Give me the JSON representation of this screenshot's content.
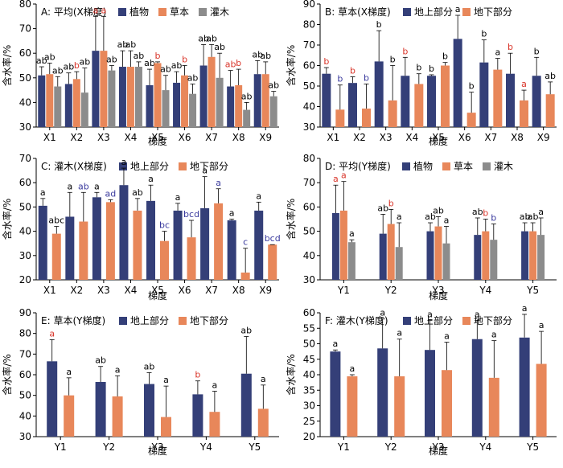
{
  "colors": {
    "plant": "#343f78",
    "herb": "#e8875a",
    "shrub": "#8c8c8c",
    "above": "#343f78",
    "below": "#e8875a",
    "letter_black": "#000000",
    "letter_red": "#d9352a",
    "letter_blue": "#3b3b9e"
  },
  "legend": {
    "plant": "植物",
    "herb": "草本",
    "shrub": "灌木",
    "above": "地上部分",
    "below": "地下部分"
  },
  "ylabel": "含水率/%",
  "xlabel": "梯度",
  "chart_data": [
    {
      "id": "A",
      "type": "bar",
      "title": "A: 平均(X梯度)",
      "xlabel": "梯度",
      "ylabel": "含水率/%",
      "ylim": [
        30,
        80
      ],
      "yticks": [
        30,
        40,
        50,
        60,
        70,
        80
      ],
      "categories": [
        "X1",
        "X2",
        "X3",
        "X4",
        "X5",
        "X6",
        "X7",
        "X8",
        "X9"
      ],
      "legend": [
        "植物",
        "草本",
        "灌木"
      ],
      "series": [
        {
          "name": "植物",
          "color_key": "plant",
          "values": [
            51,
            47.5,
            61,
            54.5,
            47,
            48,
            55,
            46.5,
            51.5
          ],
          "errors": [
            3.5,
            4.5,
            14,
            6.5,
            6.5,
            4.5,
            8.5,
            6.5,
            5.5
          ],
          "labels": [
            "ab",
            "ab",
            "a",
            "ab",
            "ab",
            "ab",
            "ab",
            "ab",
            "ab"
          ],
          "label_colors": [
            "letter_black",
            "letter_black",
            "letter_red",
            "letter_black",
            "letter_black",
            "letter_black",
            "letter_black",
            "letter_red",
            "letter_black"
          ]
        },
        {
          "name": "草本",
          "color_key": "herb",
          "values": [
            51.5,
            49.5,
            61,
            54.5,
            56,
            51,
            58.5,
            47,
            51.5
          ],
          "errors": [
            4.5,
            3,
            14,
            6.5,
            0.5,
            4,
            5,
            6.5,
            5
          ],
          "labels": [
            "ab",
            "b",
            "a",
            "ab",
            "b",
            "b",
            "ab",
            "b",
            "ab"
          ],
          "label_colors": [
            "letter_black",
            "letter_red",
            "letter_red",
            "letter_black",
            "letter_red",
            "letter_red",
            "letter_black",
            "letter_red",
            "letter_black"
          ]
        },
        {
          "name": "灌木",
          "color_key": "shrub",
          "values": [
            46.5,
            44,
            53,
            54.5,
            45,
            43.5,
            50,
            37,
            42.5
          ],
          "errors": [
            4,
            10,
            2,
            2,
            6,
            4,
            10,
            3,
            2
          ],
          "labels": [
            "ab",
            "ab",
            "ab",
            "ab",
            "ab",
            "ab",
            "ab",
            "ab",
            "ab"
          ],
          "label_colors": [
            "letter_black",
            "letter_black",
            "letter_black",
            "letter_black",
            "letter_black",
            "letter_black",
            "letter_black",
            "letter_black",
            "letter_black"
          ]
        }
      ]
    },
    {
      "id": "B",
      "type": "bar",
      "title": "B: 草本(X梯度)",
      "xlabel": "梯度",
      "ylabel": "含水率/%",
      "ylim": [
        30,
        90
      ],
      "yticks": [
        30,
        40,
        50,
        60,
        70,
        80,
        90
      ],
      "categories": [
        "X1",
        "X2",
        "X3",
        "X4",
        "X5",
        "X6",
        "X7",
        "X8",
        "X9"
      ],
      "legend": [
        "地上部分",
        "地下部分"
      ],
      "series": [
        {
          "name": "地上部分",
          "color_key": "above",
          "values": [
            56,
            51.5,
            62,
            55,
            55,
            73,
            61.5,
            56,
            55
          ],
          "errors": [
            3,
            3,
            15,
            9,
            0.5,
            11.5,
            11,
            10,
            9
          ],
          "labels": [
            "b",
            "b",
            "b",
            "b",
            "b",
            "a",
            "b",
            "b",
            "b"
          ],
          "label_colors": [
            "letter_red",
            "letter_red",
            "letter_black",
            "letter_red",
            "letter_black",
            "letter_black",
            "letter_black",
            "letter_red",
            "letter_black"
          ]
        },
        {
          "name": "地下部分",
          "color_key": "below",
          "values": [
            38.5,
            39,
            43,
            51,
            60,
            37,
            58,
            43,
            46
          ],
          "errors": [
            12,
            12,
            17,
            5,
            1.5,
            10,
            5.5,
            5,
            6
          ],
          "labels": [
            "b",
            "b",
            "b",
            "b",
            "b",
            "b",
            "a",
            "a",
            "ab"
          ],
          "label_colors": [
            "letter_blue",
            "letter_blue",
            "letter_black",
            "letter_black",
            "letter_black",
            "letter_black",
            "letter_black",
            "letter_red",
            "letter_black"
          ]
        }
      ]
    },
    {
      "id": "C",
      "type": "bar",
      "title": "C: 灌木(X梯度)",
      "xlabel": "梯度",
      "ylabel": "含水率/%",
      "ylim": [
        20,
        70
      ],
      "yticks": [
        20,
        30,
        40,
        50,
        60,
        70
      ],
      "categories": [
        "X1",
        "X2",
        "X3",
        "X4",
        "X5",
        "X6",
        "X7",
        "X8",
        "X9"
      ],
      "legend": [
        "地上部分",
        "地下部分"
      ],
      "series": [
        {
          "name": "地上部分",
          "color_key": "above",
          "values": [
            50.5,
            46,
            54,
            59,
            52.5,
            48.5,
            49.5,
            44.5,
            48.5
          ],
          "errors": [
            3,
            10,
            2,
            7,
            6.5,
            3,
            13,
            0.5,
            3.5
          ],
          "labels": [
            "a",
            "a",
            "a",
            "a",
            "a",
            "a",
            "a",
            "a",
            "a"
          ],
          "label_colors": [
            "letter_black",
            "letter_black",
            "letter_black",
            "letter_black",
            "letter_black",
            "letter_black",
            "letter_black",
            "letter_black",
            "letter_black"
          ]
        },
        {
          "name": "地下部分",
          "color_key": "below",
          "values": [
            39,
            44,
            52,
            48.5,
            36,
            37.5,
            51.5,
            23,
            34.5
          ],
          "errors": [
            3,
            12,
            1,
            5,
            4,
            7,
            6,
            10,
            0
          ],
          "labels": [
            "abc",
            "ab",
            "ad",
            "ab",
            "bc",
            "bcd",
            "a",
            "c",
            "bcd"
          ],
          "label_colors": [
            "letter_black",
            "letter_blue",
            "letter_blue",
            "letter_black",
            "letter_blue",
            "letter_blue",
            "letter_blue",
            "letter_blue",
            "letter_blue"
          ]
        }
      ]
    },
    {
      "id": "D",
      "type": "bar",
      "title": "D: 平均(Y梯度)",
      "xlabel": "梯度",
      "ylabel": "含水率/%",
      "ylim": [
        30,
        80
      ],
      "yticks": [
        30,
        40,
        50,
        60,
        70,
        80
      ],
      "categories": [
        "Y1",
        "Y2",
        "Y3",
        "Y4",
        "Y5"
      ],
      "legend": [
        "植物",
        "草本",
        "灌木"
      ],
      "series": [
        {
          "name": "植物",
          "color_key": "plant",
          "values": [
            57.5,
            49,
            50,
            48.5,
            50
          ],
          "errors": [
            11.5,
            8,
            3.5,
            7,
            3.5
          ],
          "labels": [
            "a",
            "ab",
            "ab",
            "ab",
            "ab"
          ],
          "label_colors": [
            "letter_red",
            "letter_black",
            "letter_black",
            "letter_black",
            "letter_black"
          ]
        },
        {
          "name": "草本",
          "color_key": "herb",
          "values": [
            58.5,
            53,
            52,
            50,
            50
          ],
          "errors": [
            12,
            6,
            4,
            5,
            3.5
          ],
          "labels": [
            "a",
            "b",
            "ab",
            "b",
            "ab"
          ],
          "label_colors": [
            "letter_red",
            "letter_red",
            "letter_black",
            "letter_red",
            "letter_black"
          ]
        },
        {
          "name": "灌木",
          "color_key": "shrub",
          "values": [
            45.5,
            43.5,
            45,
            46.5,
            48.5
          ],
          "errors": [
            1,
            10,
            7,
            6.5,
            7
          ],
          "labels": [
            "a",
            "a",
            "a",
            "b",
            "a"
          ],
          "label_colors": [
            "letter_black",
            "letter_black",
            "letter_black",
            "letter_blue",
            "letter_black"
          ]
        }
      ]
    },
    {
      "id": "E",
      "type": "bar",
      "title": "E: 草本(Y梯度)",
      "xlabel": "梯度",
      "ylabel": "含水率/%",
      "ylim": [
        30,
        90
      ],
      "yticks": [
        30,
        40,
        50,
        60,
        70,
        80,
        90
      ],
      "categories": [
        "Y1",
        "Y2",
        "Y3",
        "Y4",
        "Y5"
      ],
      "legend": [
        "地上部分",
        "地下部分"
      ],
      "series": [
        {
          "name": "地上部分",
          "color_key": "above",
          "values": [
            66.5,
            56.5,
            55.5,
            50.5,
            60.5
          ],
          "errors": [
            10.5,
            7.5,
            5.5,
            6.5,
            18
          ],
          "labels": [
            "a",
            "ab",
            "ab",
            "b",
            "ab"
          ],
          "label_colors": [
            "letter_red",
            "letter_black",
            "letter_black",
            "letter_red",
            "letter_black"
          ]
        },
        {
          "name": "地下部分",
          "color_key": "below",
          "values": [
            50,
            49.5,
            39.5,
            42,
            43.5
          ],
          "errors": [
            8.5,
            10,
            15,
            10,
            11.5
          ],
          "labels": [
            "a",
            "a",
            "a",
            "a",
            "a"
          ],
          "label_colors": [
            "letter_black",
            "letter_black",
            "letter_black",
            "letter_black",
            "letter_black"
          ]
        }
      ]
    },
    {
      "id": "F",
      "type": "bar",
      "title": "F: 灌木(Y梯度)",
      "xlabel": "梯度",
      "ylabel": "含水率/%",
      "ylim": [
        20,
        60
      ],
      "yticks": [
        20,
        25,
        30,
        35,
        40,
        45,
        50,
        55,
        60
      ],
      "categories": [
        "Y1",
        "Y2",
        "Y3",
        "Y4",
        "Y5"
      ],
      "legend": [
        "地上部分",
        "地下部分"
      ],
      "series": [
        {
          "name": "地上部分",
          "color_key": "above",
          "values": [
            47.5,
            48.5,
            48,
            51.5,
            52
          ],
          "errors": [
            0.5,
            9.5,
            9.5,
            6,
            7.5
          ],
          "labels": [
            "a",
            "a",
            "a",
            "a",
            "a"
          ],
          "label_colors": [
            "letter_black",
            "letter_black",
            "letter_black",
            "letter_black",
            "letter_black"
          ]
        },
        {
          "name": "地下部分",
          "color_key": "below",
          "values": [
            39.5,
            39.5,
            41.5,
            39,
            43.5
          ],
          "errors": [
            0.5,
            12,
            9,
            12,
            10.5
          ],
          "labels": [
            "a",
            "a",
            "a",
            "a",
            "a"
          ],
          "label_colors": [
            "letter_black",
            "letter_black",
            "letter_black",
            "letter_black",
            "letter_black"
          ]
        }
      ]
    }
  ]
}
